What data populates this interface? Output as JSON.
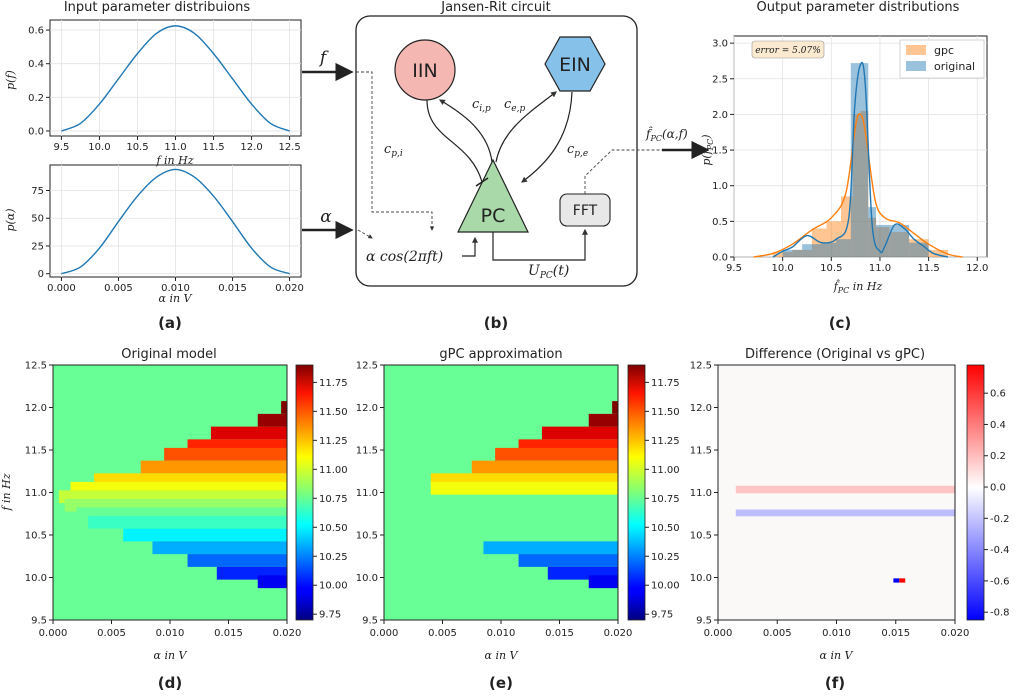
{
  "panels": {
    "a": "(a)",
    "b": "(b)",
    "c": "(c)",
    "d": "(d)",
    "e": "(e)",
    "f": "(f)"
  },
  "input_f": {
    "title": "Input parameter distribuions",
    "xlabel": "f in Hz",
    "ylabel": "p(f)",
    "xticks": [
      "9.5",
      "10.0",
      "10.5",
      "11.0",
      "11.5",
      "12.0",
      "12.5"
    ],
    "yticks": [
      "0.0",
      "0.2",
      "0.4",
      "0.6"
    ]
  },
  "input_alpha": {
    "xlabel": "α in V",
    "ylabel": "p(α)",
    "xticks": [
      "0.000",
      "0.005",
      "0.010",
      "0.015",
      "0.020"
    ],
    "yticks": [
      "0",
      "25",
      "50",
      "75"
    ]
  },
  "circuit": {
    "title": "Jansen-Rit circuit",
    "iin": "IIN",
    "ein": "EIN",
    "pc": "PC",
    "fft": "FFT",
    "c_ip": "c",
    "c_ip_sub": "i,p",
    "c_ep": "c",
    "c_ep_sub": "e,p",
    "c_pi": "c",
    "c_pi_sub": "p,i",
    "c_pe": "c",
    "c_pe_sub": "p,e",
    "input_expr": "α cos(2πft)",
    "upc": "U",
    "upc_sub": "PC",
    "upc_tail": "(t)",
    "arrow_f": "f",
    "arrow_alpha": "α",
    "out_label": "f̂",
    "out_sub": "PC",
    "out_args": "(α,f)"
  },
  "output_dist": {
    "title": "Output parameter distributions",
    "xlabel": "f̂",
    "xlabel_sub": "PC",
    "xlabel_tail": " in Hz",
    "ylabel": "p(f̂",
    "ylabel_sub": "PC",
    "ylabel_tail": ")",
    "error_label": "error = 5.07%",
    "legend": [
      "gpc",
      "original"
    ],
    "xticks": [
      "9.5",
      "10.0",
      "10.5",
      "11.0",
      "11.5",
      "12.0"
    ],
    "yticks": [
      "0.0",
      "0.5",
      "1.0",
      "1.5",
      "2.0",
      "2.5",
      "3.0"
    ]
  },
  "heatmaps": {
    "d_title": "Original model",
    "e_title": "gPC approximation",
    "f_title": "Difference (Original vs gPC)",
    "xlabel": "α in V",
    "ylabel": "f in Hz",
    "xticks": [
      "0.000",
      "0.005",
      "0.010",
      "0.015",
      "0.020"
    ],
    "yticks": [
      "9.5",
      "10.0",
      "10.5",
      "11.0",
      "11.5",
      "12.0",
      "12.5"
    ],
    "cbar_ticks": [
      "9.75",
      "10.00",
      "10.25",
      "10.50",
      "10.75",
      "11.00",
      "11.25",
      "11.50",
      "11.75"
    ],
    "diff_cbar_ticks": [
      "-0.8",
      "-0.6",
      "-0.4",
      "-0.2",
      "0.0",
      "0.2",
      "0.4",
      "0.6"
    ]
  },
  "colors": {
    "line_blue": "#1f77b4",
    "orange": "#ff7f0e",
    "iin_fill": "#f5b7b1",
    "ein_fill": "#85c1e9",
    "pc_fill": "#a9d8a9",
    "fft_fill": "#e8e8e8",
    "error_box": "#fbe9d0"
  },
  "chart_data": [
    {
      "type": "line",
      "id": "a-top",
      "xlabel": "f in Hz",
      "ylabel": "p(f)",
      "xlim": [
        9.35,
        12.65
      ],
      "ylim": [
        -0.03,
        0.66
      ],
      "x": [
        9.5,
        9.75,
        10.0,
        10.25,
        10.5,
        10.75,
        11.0,
        11.25,
        11.5,
        11.75,
        12.0,
        12.25,
        12.5
      ],
      "y": [
        0.0,
        0.045,
        0.16,
        0.31,
        0.46,
        0.58,
        0.625,
        0.58,
        0.46,
        0.31,
        0.16,
        0.045,
        0.0
      ]
    },
    {
      "type": "line",
      "id": "a-bottom",
      "xlabel": "α in V",
      "ylabel": "p(α)",
      "xlim": [
        -0.001,
        0.021
      ],
      "ylim": [
        -3,
        98
      ],
      "x": [
        0.0,
        0.00167,
        0.00333,
        0.005,
        0.00667,
        0.00833,
        0.01,
        0.01167,
        0.01333,
        0.015,
        0.01667,
        0.01833,
        0.02
      ],
      "y": [
        0,
        6,
        23,
        47,
        70,
        87,
        94,
        87,
        70,
        47,
        23,
        6,
        0
      ]
    },
    {
      "type": "bar",
      "id": "c",
      "xlabel": "f̂PC in Hz",
      "ylabel": "p(f̂PC)",
      "xlim": [
        9.5,
        12.1
      ],
      "ylim": [
        0,
        3.1
      ],
      "series": [
        {
          "name": "gpc",
          "bins": [
            [
              9.9,
              10.1,
              0.07
            ],
            [
              10.1,
              10.3,
              0.1
            ],
            [
              10.3,
              10.45,
              0.4
            ],
            [
              10.45,
              10.6,
              0.5
            ],
            [
              10.6,
              10.72,
              0.85
            ],
            [
              10.72,
              10.8,
              2.0
            ],
            [
              10.8,
              10.88,
              2.05
            ],
            [
              10.88,
              10.96,
              0.55
            ],
            [
              10.96,
              11.1,
              0.42
            ],
            [
              11.1,
              11.3,
              0.35
            ],
            [
              11.3,
              11.5,
              0.25
            ],
            [
              11.5,
              11.7,
              0.1
            ]
          ]
        },
        {
          "name": "original",
          "bins": [
            [
              10.0,
              10.2,
              0.1
            ],
            [
              10.2,
              10.4,
              0.18
            ],
            [
              10.4,
              10.55,
              0.2
            ],
            [
              10.55,
              10.7,
              0.25
            ],
            [
              10.7,
              10.8,
              2.72
            ],
            [
              10.8,
              10.88,
              2.72
            ],
            [
              10.88,
              10.96,
              0.7
            ],
            [
              10.96,
              11.1,
              0.45
            ],
            [
              11.1,
              11.3,
              0.45
            ],
            [
              11.3,
              11.5,
              0.2
            ]
          ]
        }
      ],
      "kde_gpc": {
        "x": [
          9.7,
          9.9,
          10.1,
          10.3,
          10.5,
          10.65,
          10.75,
          10.8,
          10.85,
          10.95,
          11.05,
          11.2,
          11.35,
          11.5,
          11.7,
          11.85
        ],
        "y": [
          0.0,
          0.05,
          0.18,
          0.38,
          0.55,
          0.9,
          1.85,
          2.0,
          1.75,
          0.8,
          0.55,
          0.48,
          0.33,
          0.18,
          0.04,
          0.0
        ]
      },
      "kde_orig": {
        "x": [
          9.9,
          10.0,
          10.1,
          10.25,
          10.4,
          10.55,
          10.68,
          10.74,
          10.8,
          10.85,
          10.92,
          11.0,
          11.05,
          11.15,
          11.25,
          11.35,
          11.45,
          11.55,
          11.7
        ],
        "y": [
          0.0,
          0.08,
          0.14,
          0.3,
          0.2,
          0.25,
          0.55,
          2.1,
          2.7,
          2.4,
          0.45,
          0.08,
          0.15,
          0.45,
          0.4,
          0.25,
          0.15,
          0.05,
          0.0
        ]
      }
    },
    {
      "type": "heatmap",
      "id": "d",
      "title": "Original model",
      "xlim": [
        0.0,
        0.02
      ],
      "ylim": [
        9.5,
        12.5
      ],
      "color_range": [
        9.7,
        11.9
      ],
      "background": 10.75,
      "wedge_breakpoints": {
        "f": [
          12.0,
          11.85,
          11.7,
          11.55,
          11.45,
          11.3,
          11.15,
          11.05,
          10.95,
          10.85,
          10.75,
          10.65,
          10.5,
          10.35,
          10.2,
          10.05,
          9.95
        ],
        "alpha_start": [
          0.0195,
          0.0175,
          0.0135,
          0.0115,
          0.0095,
          0.0075,
          0.0035,
          0.0015,
          0.0005,
          0.001,
          0.002,
          0.003,
          0.006,
          0.0085,
          0.0115,
          0.014,
          0.0175
        ]
      }
    },
    {
      "type": "heatmap",
      "id": "e",
      "title": "gPC approximation",
      "xlim": [
        0.0,
        0.02
      ],
      "ylim": [
        9.5,
        12.5
      ],
      "color_range": [
        9.7,
        11.9
      ]
    },
    {
      "type": "heatmap",
      "id": "f",
      "title": "Difference (Original vs gPC)",
      "xlim": [
        0.0,
        0.02
      ],
      "ylim": [
        9.5,
        12.5
      ],
      "color_range": [
        -0.85,
        0.78
      ],
      "bands": [
        {
          "f": [
            10.99,
            11.08
          ],
          "alpha": [
            0.0015,
            0.02
          ],
          "value": 0.18
        },
        {
          "f": [
            10.72,
            10.8
          ],
          "alpha": [
            0.0015,
            0.02
          ],
          "value": -0.22
        },
        {
          "f": [
            9.94,
            9.99
          ],
          "alpha": [
            0.0148,
            0.0153
          ],
          "value": -0.85
        },
        {
          "f": [
            9.94,
            9.99
          ],
          "alpha": [
            0.0153,
            0.0158
          ],
          "value": 0.78
        }
      ]
    }
  ]
}
